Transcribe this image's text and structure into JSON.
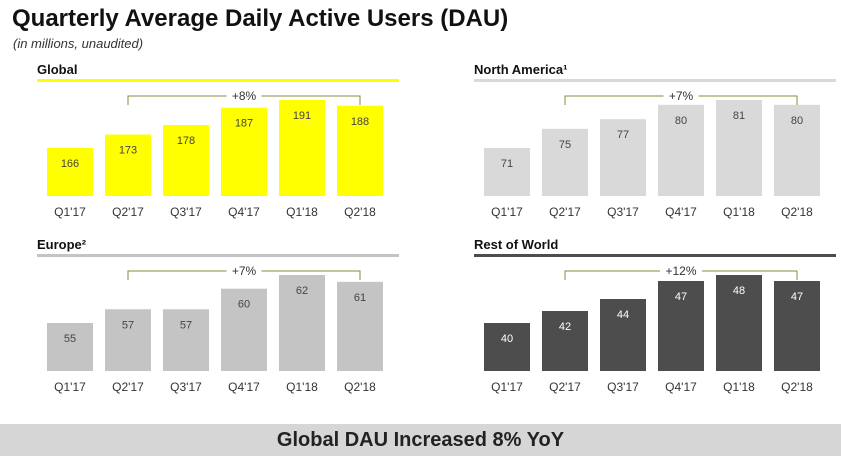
{
  "header": {
    "title": "Quarterly Average Daily Active Users (DAU)",
    "subtitle": "(in millions, unaudited)"
  },
  "footer": {
    "text": "Global DAU Increased 8% YoY"
  },
  "chart_data": [
    {
      "id": "global",
      "type": "bar",
      "title": "Global",
      "categories": [
        "Q1'17",
        "Q2'17",
        "Q3'17",
        "Q4'17",
        "Q1'18",
        "Q2'18"
      ],
      "values": [
        166,
        173,
        178,
        187,
        191,
        188
      ],
      "growth_label": "+8%",
      "growth_from": "Q2'17",
      "growth_to": "Q2'18",
      "unit": "millions",
      "colors": {
        "bar": "#ffff00",
        "label": "#444444",
        "rule": "#ffff00",
        "bracket": "#8a8a3c"
      }
    },
    {
      "id": "north-america",
      "type": "bar",
      "title": "North America¹",
      "categories": [
        "Q1'17",
        "Q2'17",
        "Q3'17",
        "Q4'17",
        "Q1'18",
        "Q2'18"
      ],
      "values": [
        71,
        75,
        77,
        80,
        81,
        80
      ],
      "growth_label": "+7%",
      "growth_from": "Q2'17",
      "growth_to": "Q2'18",
      "unit": "millions",
      "colors": {
        "bar": "#d9d9d9",
        "label": "#444444",
        "rule": "#d9d9d9",
        "bracket": "#8a8a3c"
      }
    },
    {
      "id": "europe",
      "type": "bar",
      "title": "Europe²",
      "categories": [
        "Q1'17",
        "Q2'17",
        "Q3'17",
        "Q4'17",
        "Q1'18",
        "Q2'18"
      ],
      "values": [
        55,
        57,
        57,
        60,
        62,
        61
      ],
      "growth_label": "+7%",
      "growth_from": "Q2'17",
      "growth_to": "Q2'18",
      "unit": "millions",
      "colors": {
        "bar": "#c4c4c4",
        "label": "#444444",
        "rule": "#c4c4c4",
        "bracket": "#8a8a3c"
      }
    },
    {
      "id": "rest-of-world",
      "type": "bar",
      "title": "Rest of World",
      "categories": [
        "Q1'17",
        "Q2'17",
        "Q3'17",
        "Q4'17",
        "Q1'18",
        "Q2'18"
      ],
      "values": [
        40,
        42,
        44,
        47,
        48,
        47
      ],
      "growth_label": "+12%",
      "growth_from": "Q2'17",
      "growth_to": "Q2'18",
      "unit": "millions",
      "colors": {
        "bar": "#4d4d4d",
        "label": "#ffffff",
        "rule": "#4d4d4d",
        "bracket": "#8a8a3c"
      }
    }
  ]
}
